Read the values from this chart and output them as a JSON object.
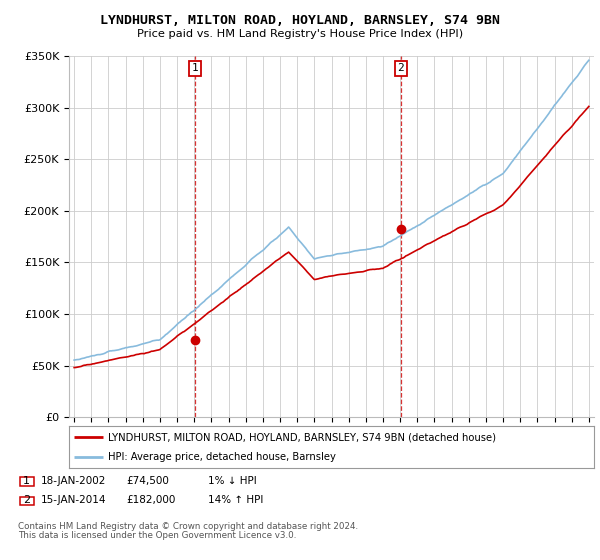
{
  "title": "LYNDHURST, MILTON ROAD, HOYLAND, BARNSLEY, S74 9BN",
  "subtitle": "Price paid vs. HM Land Registry's House Price Index (HPI)",
  "legend_line1": "LYNDHURST, MILTON ROAD, HOYLAND, BARNSLEY, S74 9BN (detached house)",
  "legend_line2": "HPI: Average price, detached house, Barnsley",
  "sale1_date": "18-JAN-2002",
  "sale1_price": "£74,500",
  "sale1_hpi": "1% ↓ HPI",
  "sale1_year": 2002.05,
  "sale1_value": 74500,
  "sale2_date": "15-JAN-2014",
  "sale2_price": "£182,000",
  "sale2_hpi": "14% ↑ HPI",
  "sale2_year": 2014.05,
  "sale2_value": 182000,
  "footnote1": "Contains HM Land Registry data © Crown copyright and database right 2024.",
  "footnote2": "This data is licensed under the Open Government Licence v3.0.",
  "property_color": "#cc0000",
  "hpi_color": "#88bbdd",
  "sale_dot_color": "#cc0000",
  "background_color": "#ffffff",
  "grid_color": "#cccccc",
  "ylim": [
    0,
    350000
  ],
  "xlim": [
    1994.7,
    2025.3
  ]
}
